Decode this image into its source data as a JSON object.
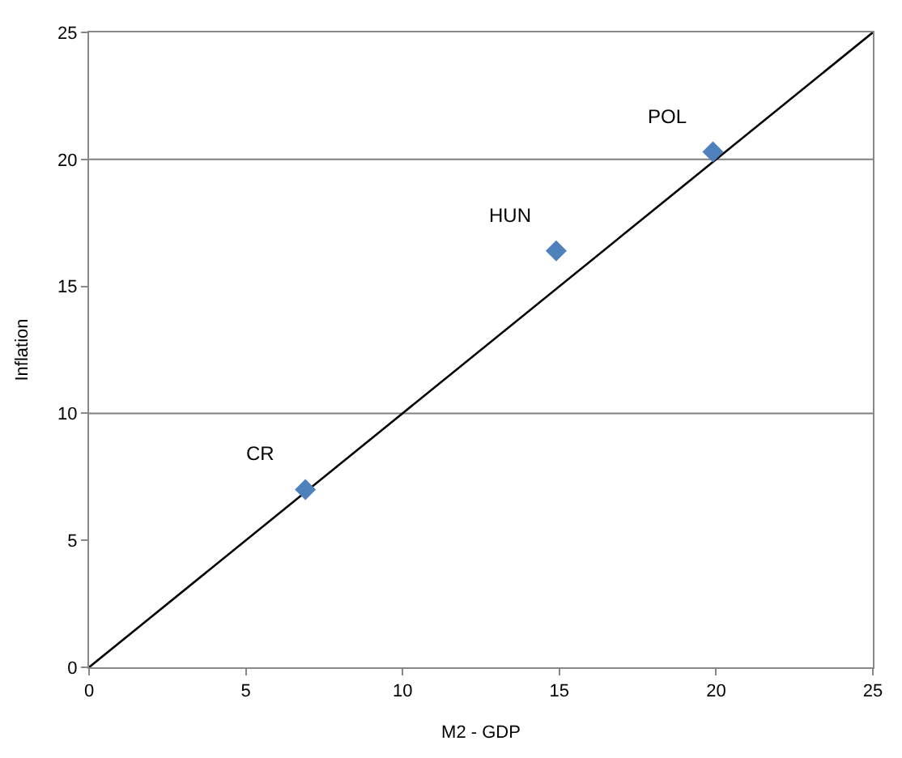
{
  "chart_data": {
    "type": "scatter",
    "xlabel": "M2 - GDP",
    "ylabel": "Inflation",
    "xlim": [
      0,
      25
    ],
    "ylim": [
      0,
      25
    ],
    "xticks": [
      0,
      5,
      10,
      15,
      20,
      25
    ],
    "yticks": [
      0,
      5,
      10,
      15,
      20,
      25
    ],
    "grid": false,
    "series": [
      {
        "type": "line",
        "color": "#000000",
        "x": [
          0,
          25
        ],
        "values": [
          0,
          25
        ],
        "marker": "none",
        "line_style": "solid"
      },
      {
        "color": "#4f81bd",
        "x": [
          6.9,
          14.9,
          19.9
        ],
        "values": [
          7.0,
          16.4,
          20.3
        ],
        "marker": "diamond"
      }
    ],
    "ref_lines": [
      {
        "axis": "y",
        "value": 10,
        "color": "#808080"
      },
      {
        "axis": "y",
        "value": 20,
        "color": "#808080"
      }
    ],
    "annotations": [
      {
        "text": "CR",
        "x": 6.9,
        "y": 7.0
      },
      {
        "text": "HUN",
        "x": 14.9,
        "y": 16.4
      },
      {
        "text": "POL",
        "x": 19.9,
        "y": 20.3
      }
    ]
  }
}
